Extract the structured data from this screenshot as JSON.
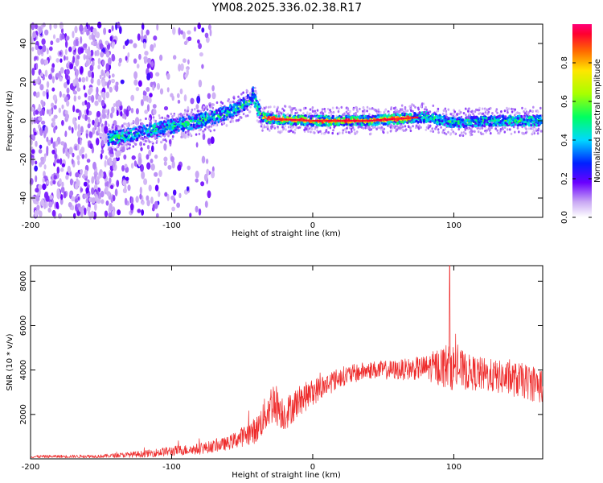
{
  "title": "YM08.2025.336.02.38.R17",
  "chart_data": [
    {
      "type": "heatmap",
      "xlabel": "Height of straight line (km)",
      "ylabel": "Frequency (Hz)",
      "xlim": [
        -200,
        163
      ],
      "ylim": [
        -50,
        50
      ],
      "xticks": [
        -200,
        -100,
        0,
        100
      ],
      "xtick_labels": [
        "-200",
        "-100",
        "0",
        "100"
      ],
      "yticks": [
        -40,
        -20,
        0,
        20,
        40
      ],
      "ytick_labels": [
        "-40",
        "-20",
        "0",
        "20",
        "40"
      ],
      "colorbar": {
        "label": "Normalized spectral amplitude",
        "range": [
          0,
          1
        ],
        "ticks": [
          0.0,
          0.2,
          0.4,
          0.6,
          0.8
        ],
        "tick_labels": [
          "0.0",
          "0.2",
          "0.4",
          "0.6",
          "0.8"
        ]
      },
      "trace": [
        {
          "x": -140,
          "f": -9
        },
        {
          "x": -120,
          "f": -6
        },
        {
          "x": -100,
          "f": -3
        },
        {
          "x": -80,
          "f": 0
        },
        {
          "x": -60,
          "f": 4
        },
        {
          "x": -45,
          "f": 10
        },
        {
          "x": -42,
          "f": 14
        },
        {
          "x": -40,
          "f": 8
        },
        {
          "x": -36,
          "f": 2
        },
        {
          "x": -30,
          "f": 1
        },
        {
          "x": 0,
          "f": 0
        },
        {
          "x": 40,
          "f": 0
        },
        {
          "x": 80,
          "f": 2
        },
        {
          "x": 100,
          "f": -1
        },
        {
          "x": 130,
          "f": 0
        },
        {
          "x": 163,
          "f": 0
        }
      ]
    },
    {
      "type": "line",
      "xlabel": "Height of straight line (km)",
      "ylabel": "SNR (10 * v/v)",
      "xlim": [
        -200,
        163
      ],
      "ylim": [
        0,
        8700
      ],
      "xticks": [
        -200,
        -100,
        0,
        100
      ],
      "xtick_labels": [
        "-200",
        "-100",
        "0",
        "100"
      ],
      "yticks": [
        2000,
        4000,
        6000,
        8000
      ],
      "ytick_labels": [
        "2000",
        "4000",
        "6000",
        "8000"
      ],
      "color": "#ee2b2b",
      "envelope": [
        {
          "x": -200,
          "mean": 100,
          "spread": 120
        },
        {
          "x": -150,
          "mean": 120,
          "spread": 150
        },
        {
          "x": -120,
          "mean": 220,
          "spread": 300
        },
        {
          "x": -100,
          "mean": 350,
          "spread": 450
        },
        {
          "x": -80,
          "mean": 450,
          "spread": 500
        },
        {
          "x": -60,
          "mean": 700,
          "spread": 600
        },
        {
          "x": -40,
          "mean": 1300,
          "spread": 1200
        },
        {
          "x": -28,
          "mean": 2600,
          "spread": 2000
        },
        {
          "x": -20,
          "mean": 2000,
          "spread": 1500
        },
        {
          "x": -10,
          "mean": 2600,
          "spread": 1400
        },
        {
          "x": 0,
          "mean": 3000,
          "spread": 1200
        },
        {
          "x": 20,
          "mean": 3700,
          "spread": 900
        },
        {
          "x": 40,
          "mean": 4000,
          "spread": 800
        },
        {
          "x": 60,
          "mean": 4000,
          "spread": 900
        },
        {
          "x": 80,
          "mean": 4100,
          "spread": 1100
        },
        {
          "x": 97,
          "mean": 4200,
          "spread": 2200
        },
        {
          "x": 110,
          "mean": 3900,
          "spread": 1600
        },
        {
          "x": 130,
          "mean": 3700,
          "spread": 1500
        },
        {
          "x": 150,
          "mean": 3500,
          "spread": 1600
        },
        {
          "x": 163,
          "mean": 3300,
          "spread": 1700
        }
      ],
      "peak": {
        "x": 97,
        "y": 8700
      }
    }
  ]
}
